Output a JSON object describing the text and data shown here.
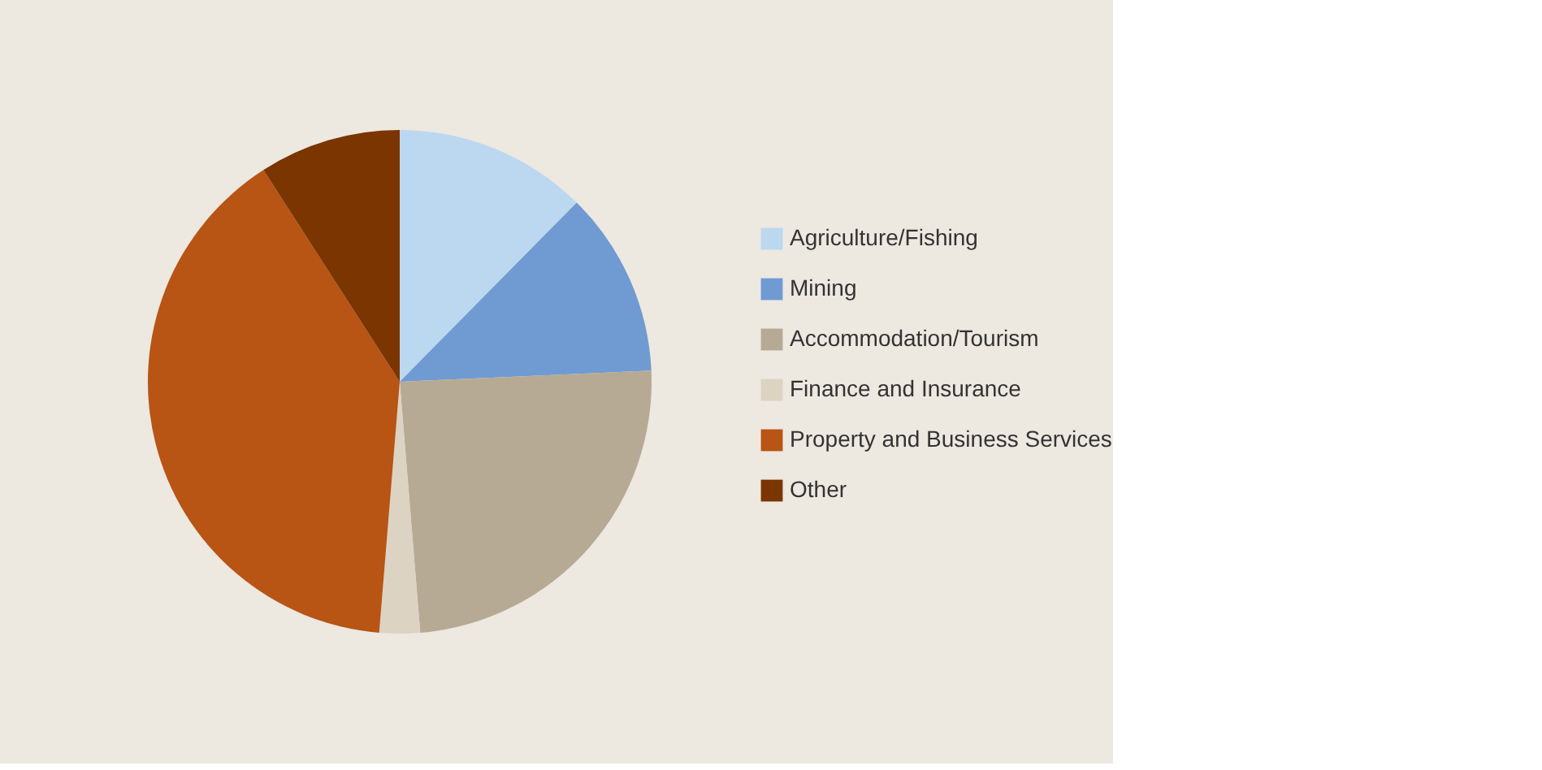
{
  "chart_data": {
    "type": "pie",
    "categories": [
      "Agriculture/Fishing",
      "Mining",
      "Accommodation/Tourism",
      "Finance and Insurance",
      "Property and Business Services",
      "Other"
    ],
    "values": [
      12.4,
      11.9,
      24.4,
      2.6,
      39.6,
      9.1
    ],
    "colors": [
      "#bcd8f0",
      "#6f9bd2",
      "#b7aa94",
      "#dcd3c3",
      "#b85414",
      "#7a3500"
    ],
    "legend": "right"
  }
}
